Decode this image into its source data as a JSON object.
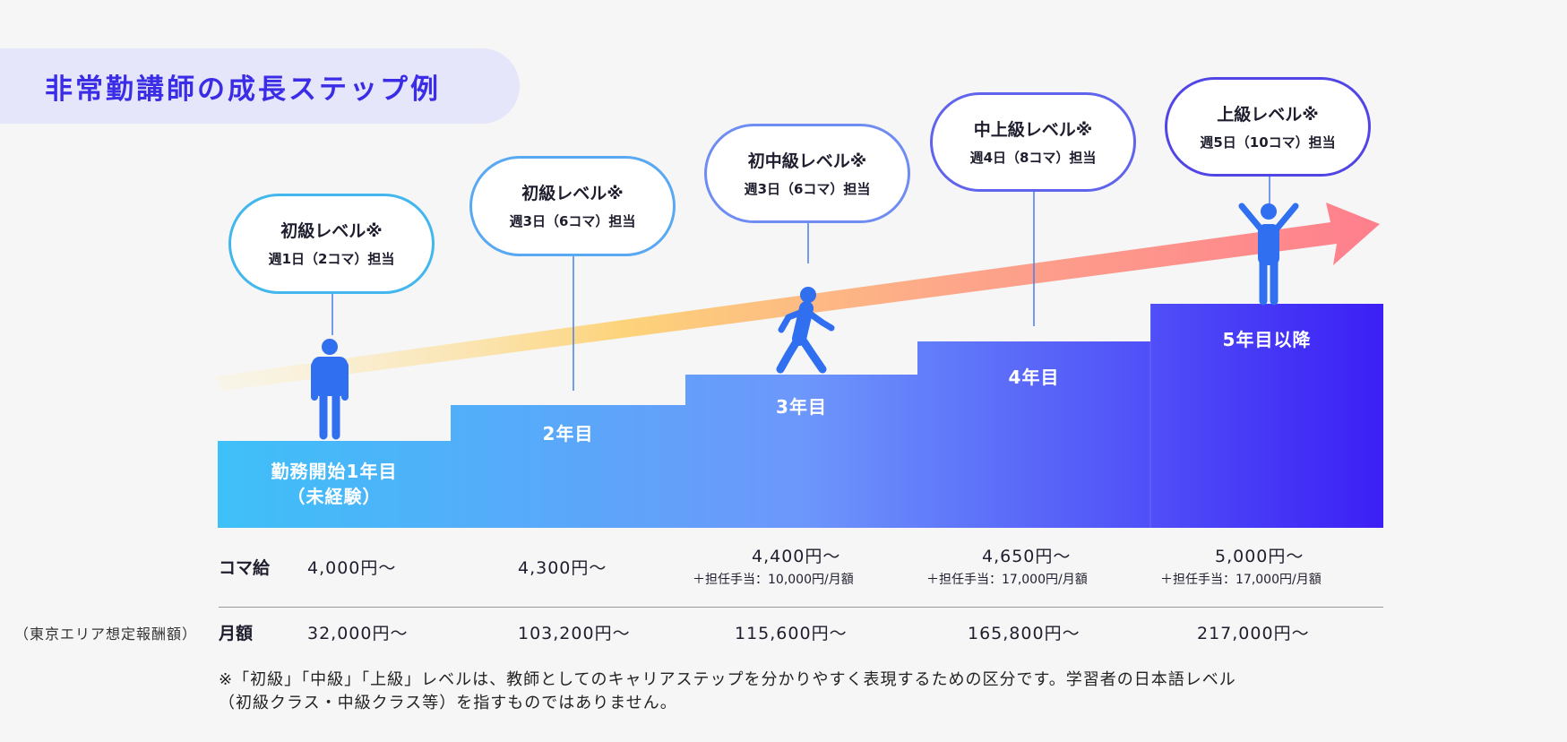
{
  "title": "非常勤講師の成長ステップ例",
  "steps": [
    {
      "label_line1": "勤務開始1年目",
      "label_line2": "（未経験）",
      "level": "初級レベル※",
      "weekly": "週1日（2コマ）担当",
      "koma": "4,000円〜",
      "allowance": "",
      "monthly": "32,000円〜"
    },
    {
      "label_line1": "2年目",
      "label_line2": "",
      "level": "初級レベル※",
      "weekly": "週3日（6コマ）担当",
      "koma": "4,300円〜",
      "allowance": "",
      "monthly": "103,200円〜"
    },
    {
      "label_line1": "3年目",
      "label_line2": "",
      "level": "初中級レベル※",
      "weekly": "週3日（6コマ）担当",
      "koma": "4,400円〜",
      "allowance": "＋担任手当：10,000円/月額",
      "monthly": "115,600円〜"
    },
    {
      "label_line1": "4年目",
      "label_line2": "",
      "level": "中上級レベル※",
      "weekly": "週4日（8コマ）担当",
      "koma": "4,650円〜",
      "allowance": "＋担任手当：17,000円/月額",
      "monthly": "165,800円〜"
    },
    {
      "label_line1": "5年目以降",
      "label_line2": "",
      "level": "上級レベル※",
      "weekly": "週5日（10コマ）担当",
      "koma": "5,000円〜",
      "allowance": "＋担任手当：17,000円/月額",
      "monthly": "217,000円〜"
    }
  ],
  "rows": {
    "koma_label": "コマ給",
    "monthly_label": "月額",
    "area_note": "（東京エリア想定報酬額）"
  },
  "footnote": {
    "line1": "※「初級」「中級」「上級」レベルは、教師としてのキャリアステップを分かりやすく表現するための区分です。学習者の日本語レベル",
    "line2": "（初級クラス・中級クラス等）を指すものではありません。"
  },
  "colors": {
    "accent": "#3b2de6",
    "bar_start": "#3ec0f8",
    "bar_end": "#3c1ff5",
    "figure": "#2f6ff0"
  },
  "icons": [
    "standing-person-icon",
    "walking-person-icon",
    "cheering-person-icon",
    "growth-arrow"
  ]
}
